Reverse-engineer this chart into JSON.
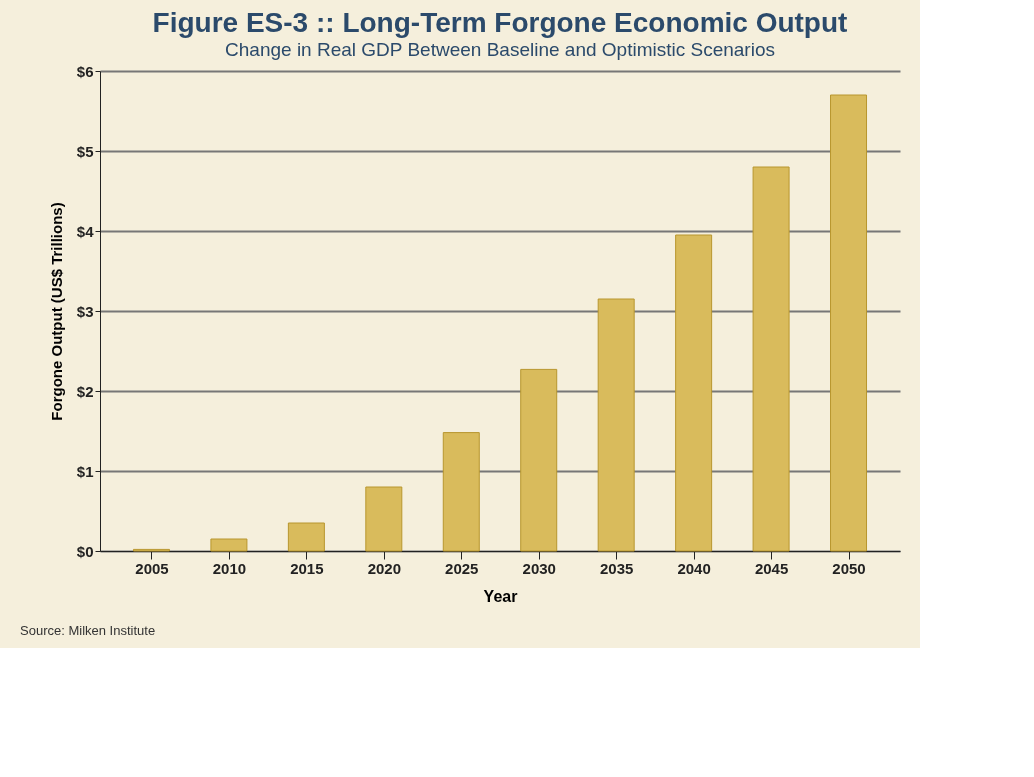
{
  "chart_data": {
    "type": "bar",
    "title": "Figure ES-3 :: Long-Term Forgone Economic Output",
    "subtitle": "Change in Real GDP Between Baseline and Optimistic Scenarios",
    "xlabel": "Year",
    "ylabel": "Forgone Output (US$ Trillions)",
    "categories": [
      "2005",
      "2010",
      "2015",
      "2020",
      "2025",
      "2030",
      "2035",
      "2040",
      "2045",
      "2050"
    ],
    "values": [
      0.02,
      0.15,
      0.35,
      0.8,
      1.48,
      2.27,
      3.15,
      3.95,
      4.8,
      5.7
    ],
    "color": "#d9bb5c",
    "ylim": [
      0,
      6
    ],
    "yticks": [
      {
        "value": 0,
        "label": "$0"
      },
      {
        "value": 1,
        "label": "$1"
      },
      {
        "value": 2,
        "label": "$2"
      },
      {
        "value": 3,
        "label": "$3"
      },
      {
        "value": 4,
        "label": "$4"
      },
      {
        "value": 5,
        "label": "$5"
      },
      {
        "value": 6,
        "label": "$6"
      }
    ],
    "grid": "y",
    "annotations": [
      "Source: Milken Institute"
    ]
  }
}
